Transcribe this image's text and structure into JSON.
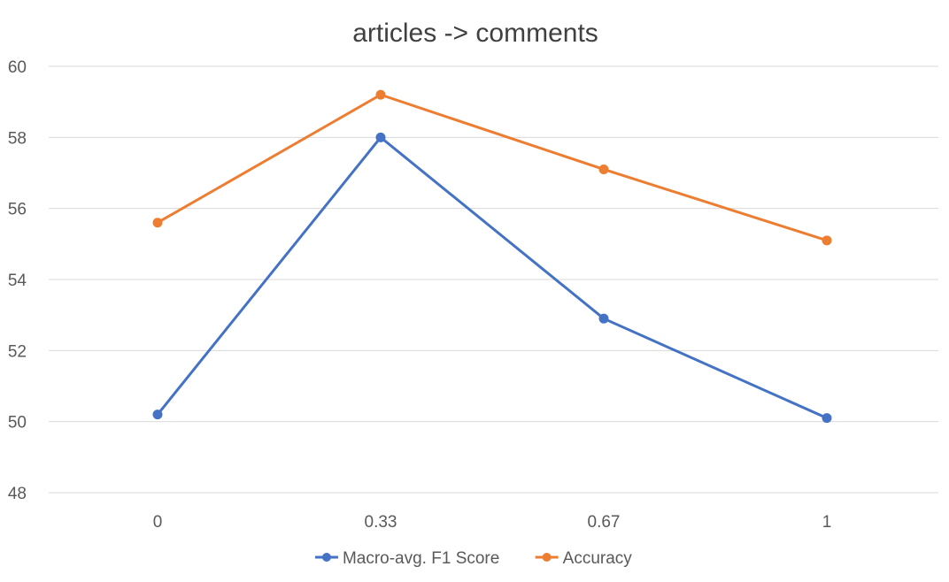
{
  "chart_data": {
    "type": "line",
    "title": "articles -> comments",
    "xlabel": "",
    "ylabel": "",
    "categories": [
      "0",
      "0.33",
      "0.67",
      "1"
    ],
    "ylim": [
      48,
      60
    ],
    "yticks": [
      48,
      50,
      52,
      54,
      56,
      58,
      60
    ],
    "grid": true,
    "legend_position": "bottom",
    "series": [
      {
        "name": "Macro-avg. F1 Score",
        "color": "#4472C4",
        "values": [
          50.2,
          58.0,
          52.9,
          50.1
        ]
      },
      {
        "name": "Accuracy",
        "color": "#ED7D31",
        "values": [
          55.6,
          59.2,
          57.1,
          55.1
        ]
      }
    ]
  }
}
